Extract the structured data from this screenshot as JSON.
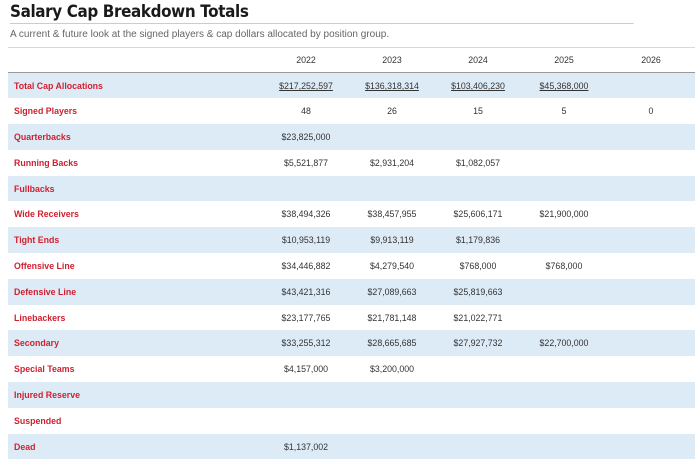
{
  "page": {
    "title": "Salary Cap Breakdown Totals",
    "subtitle": "A current & future look at the signed players & cap dollars allocated by position group."
  },
  "table": {
    "years": [
      "2022",
      "2023",
      "2024",
      "2025",
      "2026"
    ],
    "rows": [
      {
        "label": "Total Cap Allocations",
        "values": [
          "$217,252,597",
          "$136,318,314",
          "$103,406,230",
          "$45,368,000",
          ""
        ],
        "link": true
      },
      {
        "label": "Signed Players",
        "values": [
          "48",
          "26",
          "15",
          "5",
          "0"
        ]
      },
      {
        "label": "Quarterbacks",
        "values": [
          "$23,825,000",
          "",
          "",
          "",
          ""
        ]
      },
      {
        "label": "Running Backs",
        "values": [
          "$5,521,877",
          "$2,931,204",
          "$1,082,057",
          "",
          ""
        ]
      },
      {
        "label": "Fullbacks",
        "values": [
          "",
          "",
          "",
          "",
          ""
        ]
      },
      {
        "label": "Wide Receivers",
        "values": [
          "$38,494,326",
          "$38,457,955",
          "$25,606,171",
          "$21,900,000",
          ""
        ]
      },
      {
        "label": "Tight Ends",
        "values": [
          "$10,953,119",
          "$9,913,119",
          "$1,179,836",
          "",
          ""
        ]
      },
      {
        "label": "Offensive Line",
        "values": [
          "$34,446,882",
          "$4,279,540",
          "$768,000",
          "$768,000",
          ""
        ]
      },
      {
        "label": "Defensive Line",
        "values": [
          "$43,421,316",
          "$27,089,663",
          "$25,819,663",
          "",
          ""
        ]
      },
      {
        "label": "Linebackers",
        "values": [
          "$23,177,765",
          "$21,781,148",
          "$21,022,771",
          "",
          ""
        ]
      },
      {
        "label": "Secondary",
        "values": [
          "$33,255,312",
          "$28,665,685",
          "$27,927,732",
          "$22,700,000",
          ""
        ]
      },
      {
        "label": "Special Teams",
        "values": [
          "$4,157,000",
          "$3,200,000",
          "",
          "",
          ""
        ]
      },
      {
        "label": "Injured Reserve",
        "values": [
          "",
          "",
          "",
          "",
          ""
        ]
      },
      {
        "label": "Suspended",
        "values": [
          "",
          "",
          "",
          "",
          ""
        ]
      },
      {
        "label": "Dead",
        "values": [
          "$1,137,002",
          "",
          "",
          "",
          ""
        ]
      }
    ]
  },
  "colors": {
    "label_red": "#d1202f",
    "row_shade": "#ddebf7"
  }
}
